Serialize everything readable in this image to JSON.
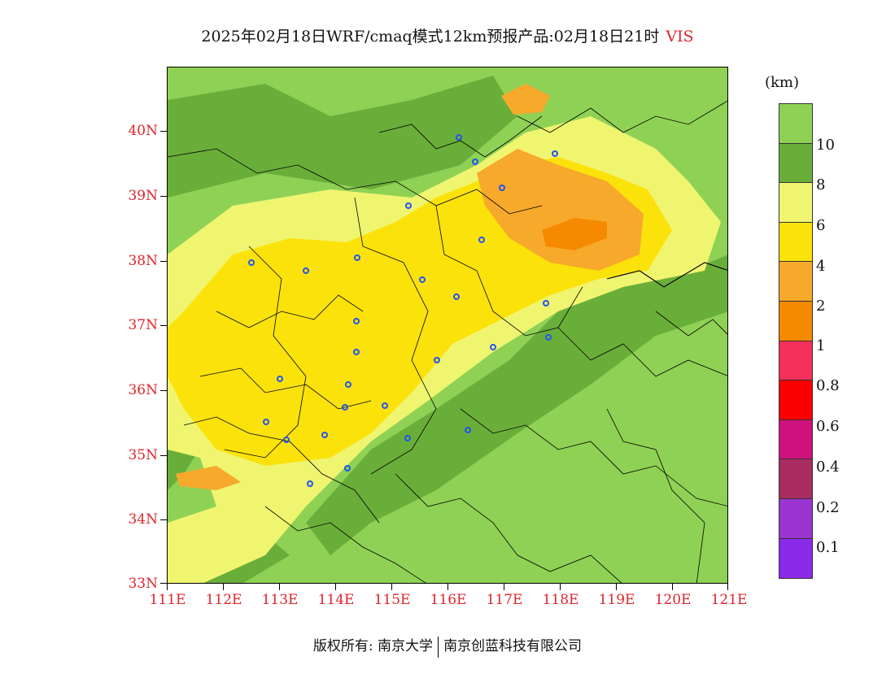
{
  "title": {
    "main": "2025年02月18日WRF/cmaq模式12km预报产品:02月18日21时",
    "variable": "VIS"
  },
  "axes": {
    "lat_labels": [
      "40N",
      "39N",
      "38N",
      "37N",
      "36N",
      "35N",
      "34N",
      "33N"
    ],
    "lon_labels": [
      "111E",
      "112E",
      "113E",
      "114E",
      "115E",
      "116E",
      "117E",
      "118E",
      "119E",
      "120E",
      "121E"
    ]
  },
  "legend": {
    "unit": "(km)",
    "colors": [
      "#8fd155",
      "#6aae3a",
      "#f0f570",
      "#fbe20a",
      "#f7a92b",
      "#f58a00",
      "#f5305a",
      "#fb0000",
      "#cf117e",
      "#a82d60",
      "#9a35d1",
      "#8b2ae8"
    ],
    "labels": [
      "10",
      "8",
      "6",
      "4",
      "2",
      "1",
      "0.8",
      "0.6",
      "0.4",
      "0.2",
      "0.1"
    ]
  },
  "footer": {
    "left": "版权所有: 南京大学",
    "right": "南京创蓝科技有限公司"
  }
}
